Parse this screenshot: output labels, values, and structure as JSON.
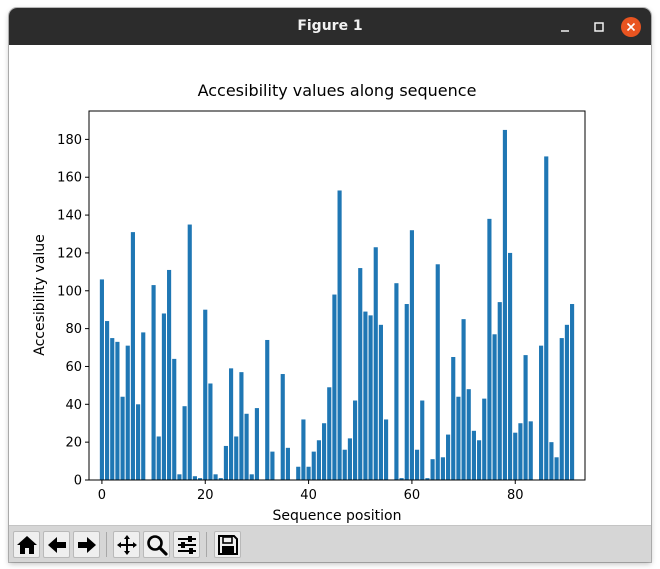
{
  "window": {
    "title": "Figure 1",
    "controls": [
      "minimize-icon",
      "maximize-icon",
      "close-icon"
    ]
  },
  "toolbar": {
    "buttons": [
      "home-icon",
      "back-icon",
      "forward-icon",
      "pan-icon",
      "zoom-icon",
      "configure-subplots-icon",
      "save-icon"
    ]
  },
  "colors": {
    "bar": "#1f77b4",
    "titlebar": "#2c2c2c",
    "close_button": "#e95420",
    "toolbar": "#d6d6d6"
  },
  "chart_data": {
    "type": "bar",
    "title": "Accesibility values along sequence",
    "xlabel": "Sequence position",
    "ylabel": "Accesibility value",
    "xlim": [
      -2.5,
      93.5
    ],
    "ylim": [
      0,
      195
    ],
    "xticks": [
      0,
      20,
      40,
      60,
      80
    ],
    "yticks": [
      0,
      20,
      40,
      60,
      80,
      100,
      120,
      140,
      160,
      180
    ],
    "grid": false,
    "legend": "none",
    "series": [
      {
        "x": [
          0,
          1,
          2,
          3,
          4,
          5,
          6,
          7,
          8,
          9,
          10,
          11,
          12,
          13,
          14,
          15,
          16,
          17,
          18,
          19,
          20,
          21,
          22,
          23,
          24,
          25,
          26,
          27,
          28,
          29,
          30,
          31,
          32,
          33,
          34,
          35,
          36,
          37,
          38,
          39,
          40,
          41,
          42,
          43,
          44,
          45,
          46,
          47,
          48,
          49,
          50,
          51,
          52,
          53,
          54,
          55,
          56,
          57,
          58,
          59,
          60,
          61,
          62,
          63,
          64,
          65,
          66,
          67,
          68,
          69,
          70,
          71,
          72,
          73,
          74,
          75,
          76,
          77,
          78,
          79,
          80,
          81,
          82,
          83,
          84,
          85,
          86,
          87,
          88,
          89,
          90,
          91
        ],
        "values": [
          106,
          84,
          75,
          73,
          44,
          71,
          131,
          40,
          78,
          0,
          103,
          23,
          88,
          111,
          64,
          3,
          39,
          135,
          2,
          1,
          90,
          51,
          3,
          1,
          18,
          59,
          23,
          57,
          35,
          3,
          38,
          0,
          74,
          15,
          0,
          56,
          17,
          0,
          7,
          32,
          7,
          15,
          21,
          30,
          49,
          98,
          153,
          16,
          22,
          42,
          112,
          89,
          87,
          123,
          82,
          32,
          0,
          104,
          1,
          93,
          132,
          16,
          42,
          1,
          11,
          114,
          12,
          24,
          65,
          44,
          85,
          48,
          26,
          21,
          43,
          138,
          77,
          94,
          185,
          120,
          25,
          30,
          66,
          31,
          0,
          71,
          171,
          20,
          12,
          75,
          82,
          93
        ]
      }
    ]
  }
}
